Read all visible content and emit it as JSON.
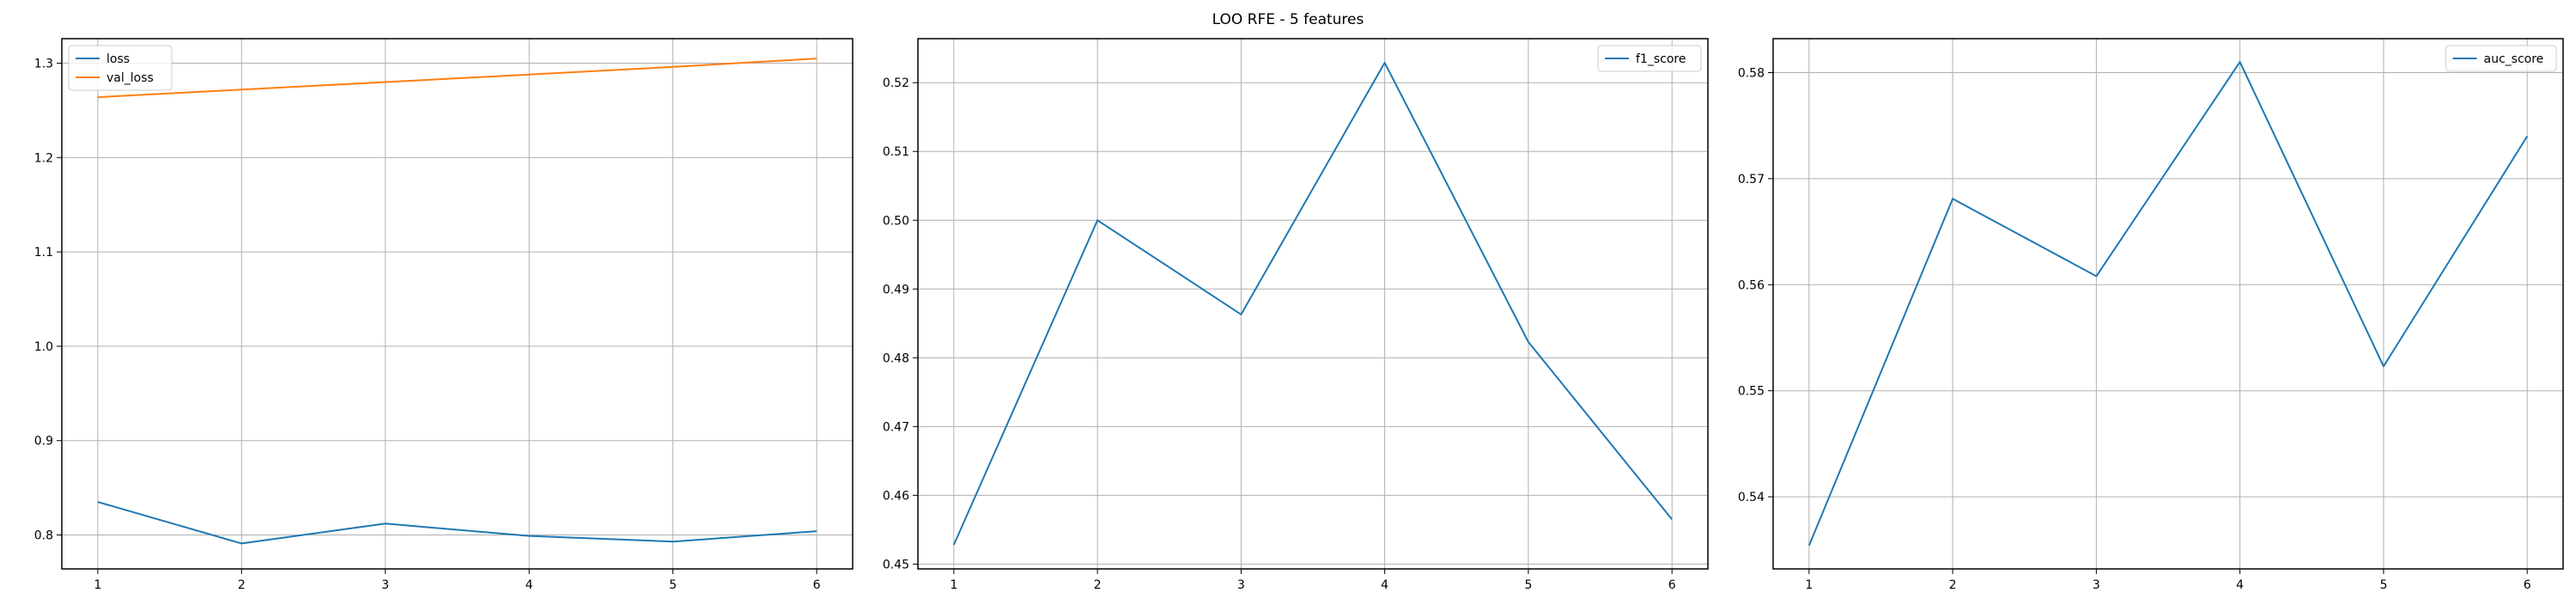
{
  "figure": {
    "suptitle": "LOO RFE - 5 features"
  },
  "chart_data": [
    {
      "type": "line",
      "x": [
        1,
        2,
        3,
        4,
        5,
        6
      ],
      "xticks": [
        1,
        2,
        3,
        4,
        5,
        6
      ],
      "xlim": [
        0.75,
        6.25
      ],
      "ylim": [
        0.764,
        1.326
      ],
      "yticks": [
        0.8,
        0.9,
        1.0,
        1.1,
        1.2,
        1.3
      ],
      "ytick_labels": [
        "0.8",
        "0.9",
        "1.0",
        "1.1",
        "1.2",
        "1.3"
      ],
      "grid": true,
      "legend_loc": "upper left",
      "series": [
        {
          "name": "loss",
          "color": "#1f77b4",
          "values": [
            0.835,
            0.791,
            0.812,
            0.799,
            0.793,
            0.804
          ]
        },
        {
          "name": "val_loss",
          "color": "#ff7f0e",
          "values": [
            1.264,
            1.272,
            1.28,
            1.288,
            1.296,
            1.305
          ]
        }
      ]
    },
    {
      "type": "line",
      "x": [
        1,
        2,
        3,
        4,
        5,
        6
      ],
      "xticks": [
        1,
        2,
        3,
        4,
        5,
        6
      ],
      "xlim": [
        0.75,
        6.25
      ],
      "ylim": [
        0.4493,
        0.5264
      ],
      "yticks": [
        0.45,
        0.46,
        0.47,
        0.48,
        0.49,
        0.5,
        0.51,
        0.52
      ],
      "ytick_labels": [
        "0.45",
        "0.46",
        "0.47",
        "0.48",
        "0.49",
        "0.50",
        "0.51",
        "0.52"
      ],
      "grid": true,
      "legend_loc": "upper right",
      "series": [
        {
          "name": "f1_score",
          "color": "#1f77b4",
          "values": [
            0.4528,
            0.5,
            0.4863,
            0.5229,
            0.4823,
            0.4565
          ]
        }
      ]
    },
    {
      "type": "line",
      "x": [
        1,
        2,
        3,
        4,
        5,
        6
      ],
      "xticks": [
        1,
        2,
        3,
        4,
        5,
        6
      ],
      "xlim": [
        0.75,
        6.25
      ],
      "ylim": [
        0.5332,
        0.5832
      ],
      "yticks": [
        0.54,
        0.55,
        0.56,
        0.57,
        0.58
      ],
      "ytick_labels": [
        "0.54",
        "0.55",
        "0.56",
        "0.57",
        "0.58"
      ],
      "grid": true,
      "legend_loc": "upper right",
      "series": [
        {
          "name": "auc_score",
          "color": "#1f77b4",
          "values": [
            0.5354,
            0.5681,
            0.5608,
            0.581,
            0.5523,
            0.574
          ]
        }
      ]
    }
  ]
}
